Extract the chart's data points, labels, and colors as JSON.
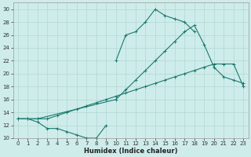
{
  "xlabel": "Humidex (Indice chaleur)",
  "bg_color": "#ceecea",
  "grid_color": "#b0d8d4",
  "line_color": "#1a7a6e",
  "ylim": [
    10,
    31
  ],
  "xlim": [
    -0.5,
    23.5
  ],
  "yticks": [
    10,
    12,
    14,
    16,
    18,
    20,
    22,
    24,
    26,
    28,
    30
  ],
  "xticks": [
    0,
    1,
    2,
    3,
    4,
    5,
    6,
    7,
    8,
    9,
    10,
    11,
    12,
    13,
    14,
    15,
    16,
    17,
    18,
    19,
    20,
    21,
    22,
    23
  ],
  "line_upper": {
    "x": [
      10,
      11,
      12,
      13,
      14,
      15,
      16,
      17,
      18
    ],
    "y": [
      22,
      26,
      26.5,
      28,
      30,
      29,
      28.5,
      28,
      26.5
    ]
  },
  "line_mid": {
    "x": [
      0,
      1,
      2,
      10,
      11,
      12,
      13,
      14,
      15,
      16,
      17,
      18,
      19,
      20,
      21,
      22,
      23
    ],
    "y": [
      13,
      13,
      13,
      16,
      17.5,
      19,
      20.5,
      22,
      23.5,
      25,
      26.5,
      27.5,
      24.5,
      21,
      19.5,
      19,
      18.5
    ]
  },
  "line_low": {
    "x": [
      0,
      1,
      2,
      3,
      4,
      5,
      6,
      7,
      8,
      9,
      10,
      11,
      12,
      13,
      14,
      15,
      16,
      17,
      18,
      19,
      20,
      21,
      22,
      23
    ],
    "y": [
      13,
      13,
      13,
      13,
      13.5,
      14,
      14.5,
      15,
      15.5,
      16,
      16.5,
      17,
      17.5,
      18,
      18.5,
      19,
      19.5,
      20,
      20.5,
      21,
      21.5,
      21.5,
      21.5,
      18
    ]
  },
  "line_dip": {
    "x": [
      0,
      1,
      2,
      3,
      4,
      5,
      6,
      7,
      8,
      9
    ],
    "y": [
      13,
      13,
      12.5,
      11.5,
      11.5,
      11,
      10.5,
      10,
      10,
      12
    ]
  }
}
